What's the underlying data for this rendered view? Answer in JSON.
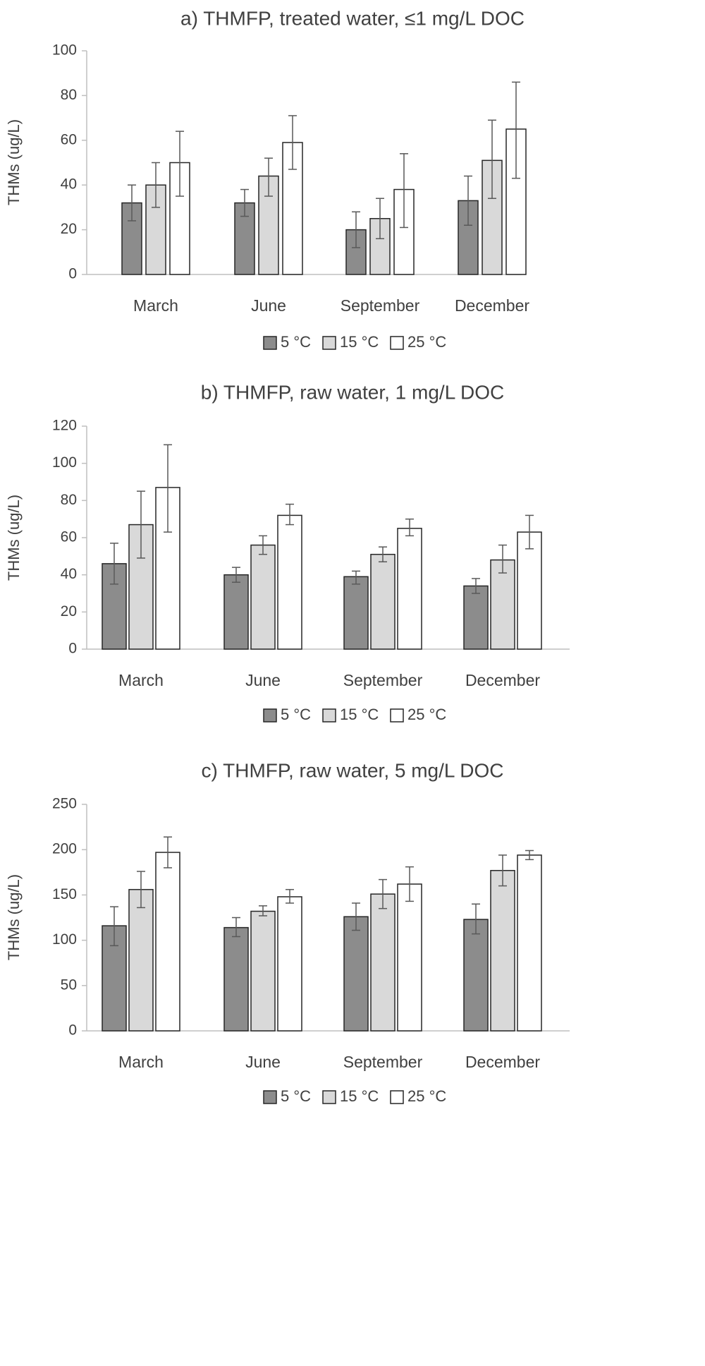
{
  "chart_data": [
    {
      "type": "bar",
      "title": "a) THMFP, treated water, ≤1 mg/L DOC",
      "ylabel": "THMs (ug/L)",
      "xlabel": "",
      "ylim": [
        0,
        100
      ],
      "yticks": [
        0,
        20,
        40,
        60,
        80,
        100
      ],
      "categories": [
        "March",
        "June",
        "September",
        "December"
      ],
      "series": [
        {
          "name": "5 °C",
          "values": [
            32,
            32,
            20,
            33
          ],
          "err_low": [
            24,
            26,
            12,
            22
          ],
          "err_high": [
            40,
            38,
            28,
            44
          ]
        },
        {
          "name": "15 °C",
          "values": [
            40,
            44,
            25,
            51
          ],
          "err_low": [
            30,
            35,
            16,
            34
          ],
          "err_high": [
            50,
            52,
            34,
            69
          ]
        },
        {
          "name": "25 °C",
          "values": [
            50,
            59,
            38,
            65
          ],
          "err_low": [
            35,
            47,
            21,
            43
          ],
          "err_high": [
            64,
            71,
            54,
            86
          ]
        }
      ],
      "grid": false,
      "legend": "bottom"
    },
    {
      "type": "bar",
      "title": "b) THMFP, raw water, 1 mg/L DOC",
      "ylabel": "THMs (ug/L)",
      "xlabel": "",
      "ylim": [
        0,
        120
      ],
      "yticks": [
        0,
        20,
        40,
        60,
        80,
        100,
        120
      ],
      "categories": [
        "March",
        "June",
        "September",
        "December"
      ],
      "series": [
        {
          "name": "5 °C",
          "values": [
            46,
            40,
            39,
            34
          ],
          "err_low": [
            35,
            36,
            35,
            30
          ],
          "err_high": [
            57,
            44,
            42,
            38
          ]
        },
        {
          "name": "15 °C",
          "values": [
            67,
            56,
            51,
            48
          ],
          "err_low": [
            49,
            51,
            47,
            41
          ],
          "err_high": [
            85,
            61,
            55,
            56
          ]
        },
        {
          "name": "25 °C",
          "values": [
            87,
            72,
            65,
            63
          ],
          "err_low": [
            63,
            67,
            61,
            54
          ],
          "err_high": [
            110,
            78,
            70,
            72
          ]
        }
      ],
      "grid": false,
      "legend": "bottom"
    },
    {
      "type": "bar",
      "title": "c) THMFP, raw water, 5 mg/L DOC",
      "ylabel": "THMs (ug/L)",
      "xlabel": "",
      "ylim": [
        0,
        250
      ],
      "yticks": [
        0,
        50,
        100,
        150,
        200,
        250
      ],
      "categories": [
        "March",
        "June",
        "September",
        "December"
      ],
      "series": [
        {
          "name": "5 °C",
          "values": [
            116,
            114,
            126,
            123
          ],
          "err_low": [
            94,
            104,
            111,
            107
          ],
          "err_high": [
            137,
            125,
            141,
            140
          ]
        },
        {
          "name": "15 °C",
          "values": [
            156,
            132,
            151,
            177
          ],
          "err_low": [
            136,
            127,
            135,
            160
          ],
          "err_high": [
            176,
            138,
            167,
            194
          ]
        },
        {
          "name": "25 °C",
          "values": [
            197,
            148,
            162,
            194
          ],
          "err_low": [
            180,
            141,
            143,
            189
          ],
          "err_high": [
            214,
            156,
            181,
            199
          ]
        }
      ],
      "grid": false,
      "legend": "bottom"
    }
  ],
  "colors": {
    "series": [
      "#8c8c8c",
      "#d9d9d9",
      "#ffffff"
    ],
    "bar_stroke": "#262626",
    "axis": "#bfbfbf",
    "text": "#404040",
    "error_bar": "#595959"
  }
}
